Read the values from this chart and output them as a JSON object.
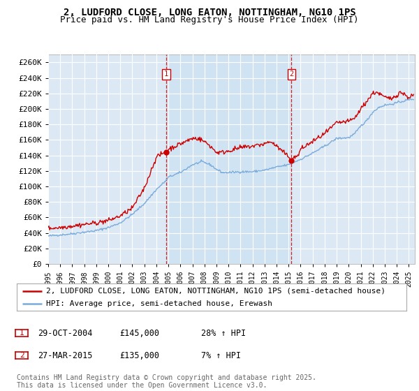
{
  "title_line1": "2, LUDFORD CLOSE, LONG EATON, NOTTINGHAM, NG10 1PS",
  "title_line2": "Price paid vs. HM Land Registry's House Price Index (HPI)",
  "ylim": [
    0,
    270000
  ],
  "yticks": [
    0,
    20000,
    40000,
    60000,
    80000,
    100000,
    120000,
    140000,
    160000,
    180000,
    200000,
    220000,
    240000,
    260000
  ],
  "ytick_labels": [
    "£0",
    "£20K",
    "£40K",
    "£60K",
    "£80K",
    "£100K",
    "£120K",
    "£140K",
    "£160K",
    "£180K",
    "£200K",
    "£220K",
    "£240K",
    "£260K"
  ],
  "xlim_start": 1995.0,
  "xlim_end": 2025.5,
  "background_color": "#ffffff",
  "plot_bg_color": "#dce9f5",
  "shade_color": "#c8dff0",
  "grid_color": "#ffffff",
  "red_line_color": "#cc0000",
  "blue_line_color": "#7aabdb",
  "marker1_date": 2004.83,
  "marker2_date": 2015.24,
  "marker1_label": "1",
  "marker2_label": "2",
  "legend_line1": "2, LUDFORD CLOSE, LONG EATON, NOTTINGHAM, NG10 1PS (semi-detached house)",
  "legend_line2": "HPI: Average price, semi-detached house, Erewash",
  "annotation1_date": "29-OCT-2004",
  "annotation1_price": "£145,000",
  "annotation1_hpi": "28% ↑ HPI",
  "annotation2_date": "27-MAR-2015",
  "annotation2_price": "£135,000",
  "annotation2_hpi": "7% ↑ HPI",
  "footer": "Contains HM Land Registry data © Crown copyright and database right 2025.\nThis data is licensed under the Open Government Licence v3.0.",
  "title_fontsize": 10,
  "subtitle_fontsize": 9,
  "tick_fontsize": 8,
  "legend_fontsize": 8,
  "annotation_fontsize": 8.5,
  "footer_fontsize": 7
}
